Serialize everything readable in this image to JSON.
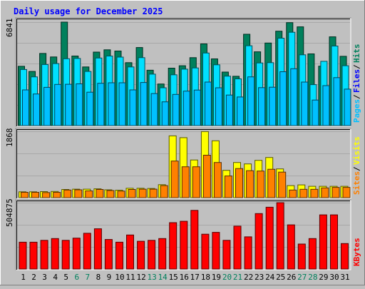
{
  "title": "Daily usage for December 2025",
  "colors": {
    "background": "#c0c0c0",
    "title": "#0000ff",
    "weekday_label": "#000000",
    "weekend_label": "#00805c",
    "hits": "#00805c",
    "files": "#00e0ff",
    "pages": "#00c0ff",
    "sites": "#ffff00",
    "visits": "#ff8000",
    "kbytes": "#ff0000"
  },
  "chart_data": [
    {
      "type": "bar",
      "panel": "hits-files-pages",
      "categories": [
        "1",
        "2",
        "3",
        "4",
        "5",
        "6",
        "7",
        "8",
        "9",
        "10",
        "11",
        "12",
        "13",
        "14",
        "15",
        "16",
        "17",
        "18",
        "19",
        "20",
        "21",
        "22",
        "23",
        "24",
        "25",
        "26",
        "27",
        "28",
        "29",
        "30",
        "31"
      ],
      "weekend_days": [
        "6",
        "7",
        "13",
        "14",
        "20",
        "21",
        "27",
        "28"
      ],
      "ymax_label": "6841",
      "ylim": [
        0,
        6841
      ],
      "legend": [
        {
          "label": "Pages",
          "color": "#00c0ff"
        },
        {
          "label": "Files",
          "color": "#0000ff"
        },
        {
          "label": "Hits",
          "color": "#00805c"
        }
      ],
      "series": [
        {
          "name": "Hits",
          "values": [
            3920,
            3580,
            4770,
            4540,
            6840,
            4600,
            3880,
            4860,
            5010,
            4930,
            4160,
            5160,
            3660,
            2750,
            3800,
            3960,
            4490,
            5400,
            4410,
            3540,
            3260,
            6040,
            4880,
            5460,
            6240,
            6810,
            6530,
            4740,
            3930,
            5870,
            4580
          ]
        },
        {
          "name": "Files",
          "values": [
            3710,
            3220,
            4040,
            4100,
            4420,
            4440,
            3580,
            4470,
            4600,
            4530,
            3880,
            4490,
            3400,
            2500,
            3360,
            3730,
            3810,
            4800,
            4020,
            3270,
            3090,
            5280,
            4140,
            4160,
            5780,
            6170,
            4680,
            2710,
            4250,
            5260,
            3960
          ]
        },
        {
          "name": "Pages",
          "values": [
            2360,
            2090,
            2530,
            2720,
            2730,
            2760,
            2210,
            2800,
            2830,
            2830,
            2360,
            2850,
            2120,
            1570,
            2060,
            2280,
            2350,
            2880,
            2500,
            2020,
            1890,
            3220,
            2510,
            2540,
            3560,
            3760,
            2880,
            1690,
            2640,
            3170,
            2410
          ]
        }
      ]
    },
    {
      "type": "bar",
      "panel": "sites-visits",
      "categories": [
        "1",
        "2",
        "3",
        "4",
        "5",
        "6",
        "7",
        "8",
        "9",
        "10",
        "11",
        "12",
        "13",
        "14",
        "15",
        "16",
        "17",
        "18",
        "19",
        "20",
        "21",
        "22",
        "23",
        "24",
        "25",
        "26",
        "27",
        "28",
        "29",
        "30",
        "31"
      ],
      "ymax_label": "1868",
      "ylim": [
        0,
        1868
      ],
      "legend": [
        {
          "label": "Sites",
          "color": "#ff8000"
        },
        {
          "label": "Visits",
          "color": "#ffff00"
        }
      ],
      "series": [
        {
          "name": "Visits",
          "values": [
            165,
            165,
            170,
            175,
            230,
            240,
            240,
            250,
            220,
            210,
            265,
            265,
            260,
            365,
            1740,
            1690,
            1060,
            1860,
            1600,
            770,
            990,
            950,
            1050,
            1130,
            810,
            340,
            360,
            320,
            320,
            320,
            320
          ]
        },
        {
          "name": "Sites",
          "values": [
            150,
            150,
            145,
            150,
            215,
            220,
            190,
            230,
            200,
            185,
            230,
            240,
            240,
            340,
            1030,
            870,
            870,
            1195,
            990,
            610,
            820,
            760,
            750,
            800,
            720,
            215,
            235,
            235,
            275,
            290,
            290
          ]
        }
      ]
    },
    {
      "type": "bar",
      "panel": "kbytes",
      "categories": [
        "1",
        "2",
        "3",
        "4",
        "5",
        "6",
        "7",
        "8",
        "9",
        "10",
        "11",
        "12",
        "13",
        "14",
        "15",
        "16",
        "17",
        "18",
        "19",
        "20",
        "21",
        "22",
        "23",
        "24",
        "25",
        "26",
        "27",
        "28",
        "29",
        "30",
        "31"
      ],
      "ymax_label": "504875",
      "ylim": [
        0,
        504875
      ],
      "legend": [
        {
          "label": "KBytes",
          "color": "#ff0000"
        }
      ],
      "series": [
        {
          "name": "KBytes",
          "values": [
            204000,
            204000,
            218000,
            232000,
            218000,
            235000,
            272000,
            306000,
            225000,
            204000,
            259000,
            211000,
            218000,
            232000,
            353000,
            363000,
            446000,
            265000,
            279000,
            218000,
            326000,
            245000,
            422000,
            470000,
            504875,
            336000,
            190000,
            232000,
            412000,
            412000,
            194000
          ]
        }
      ]
    }
  ]
}
